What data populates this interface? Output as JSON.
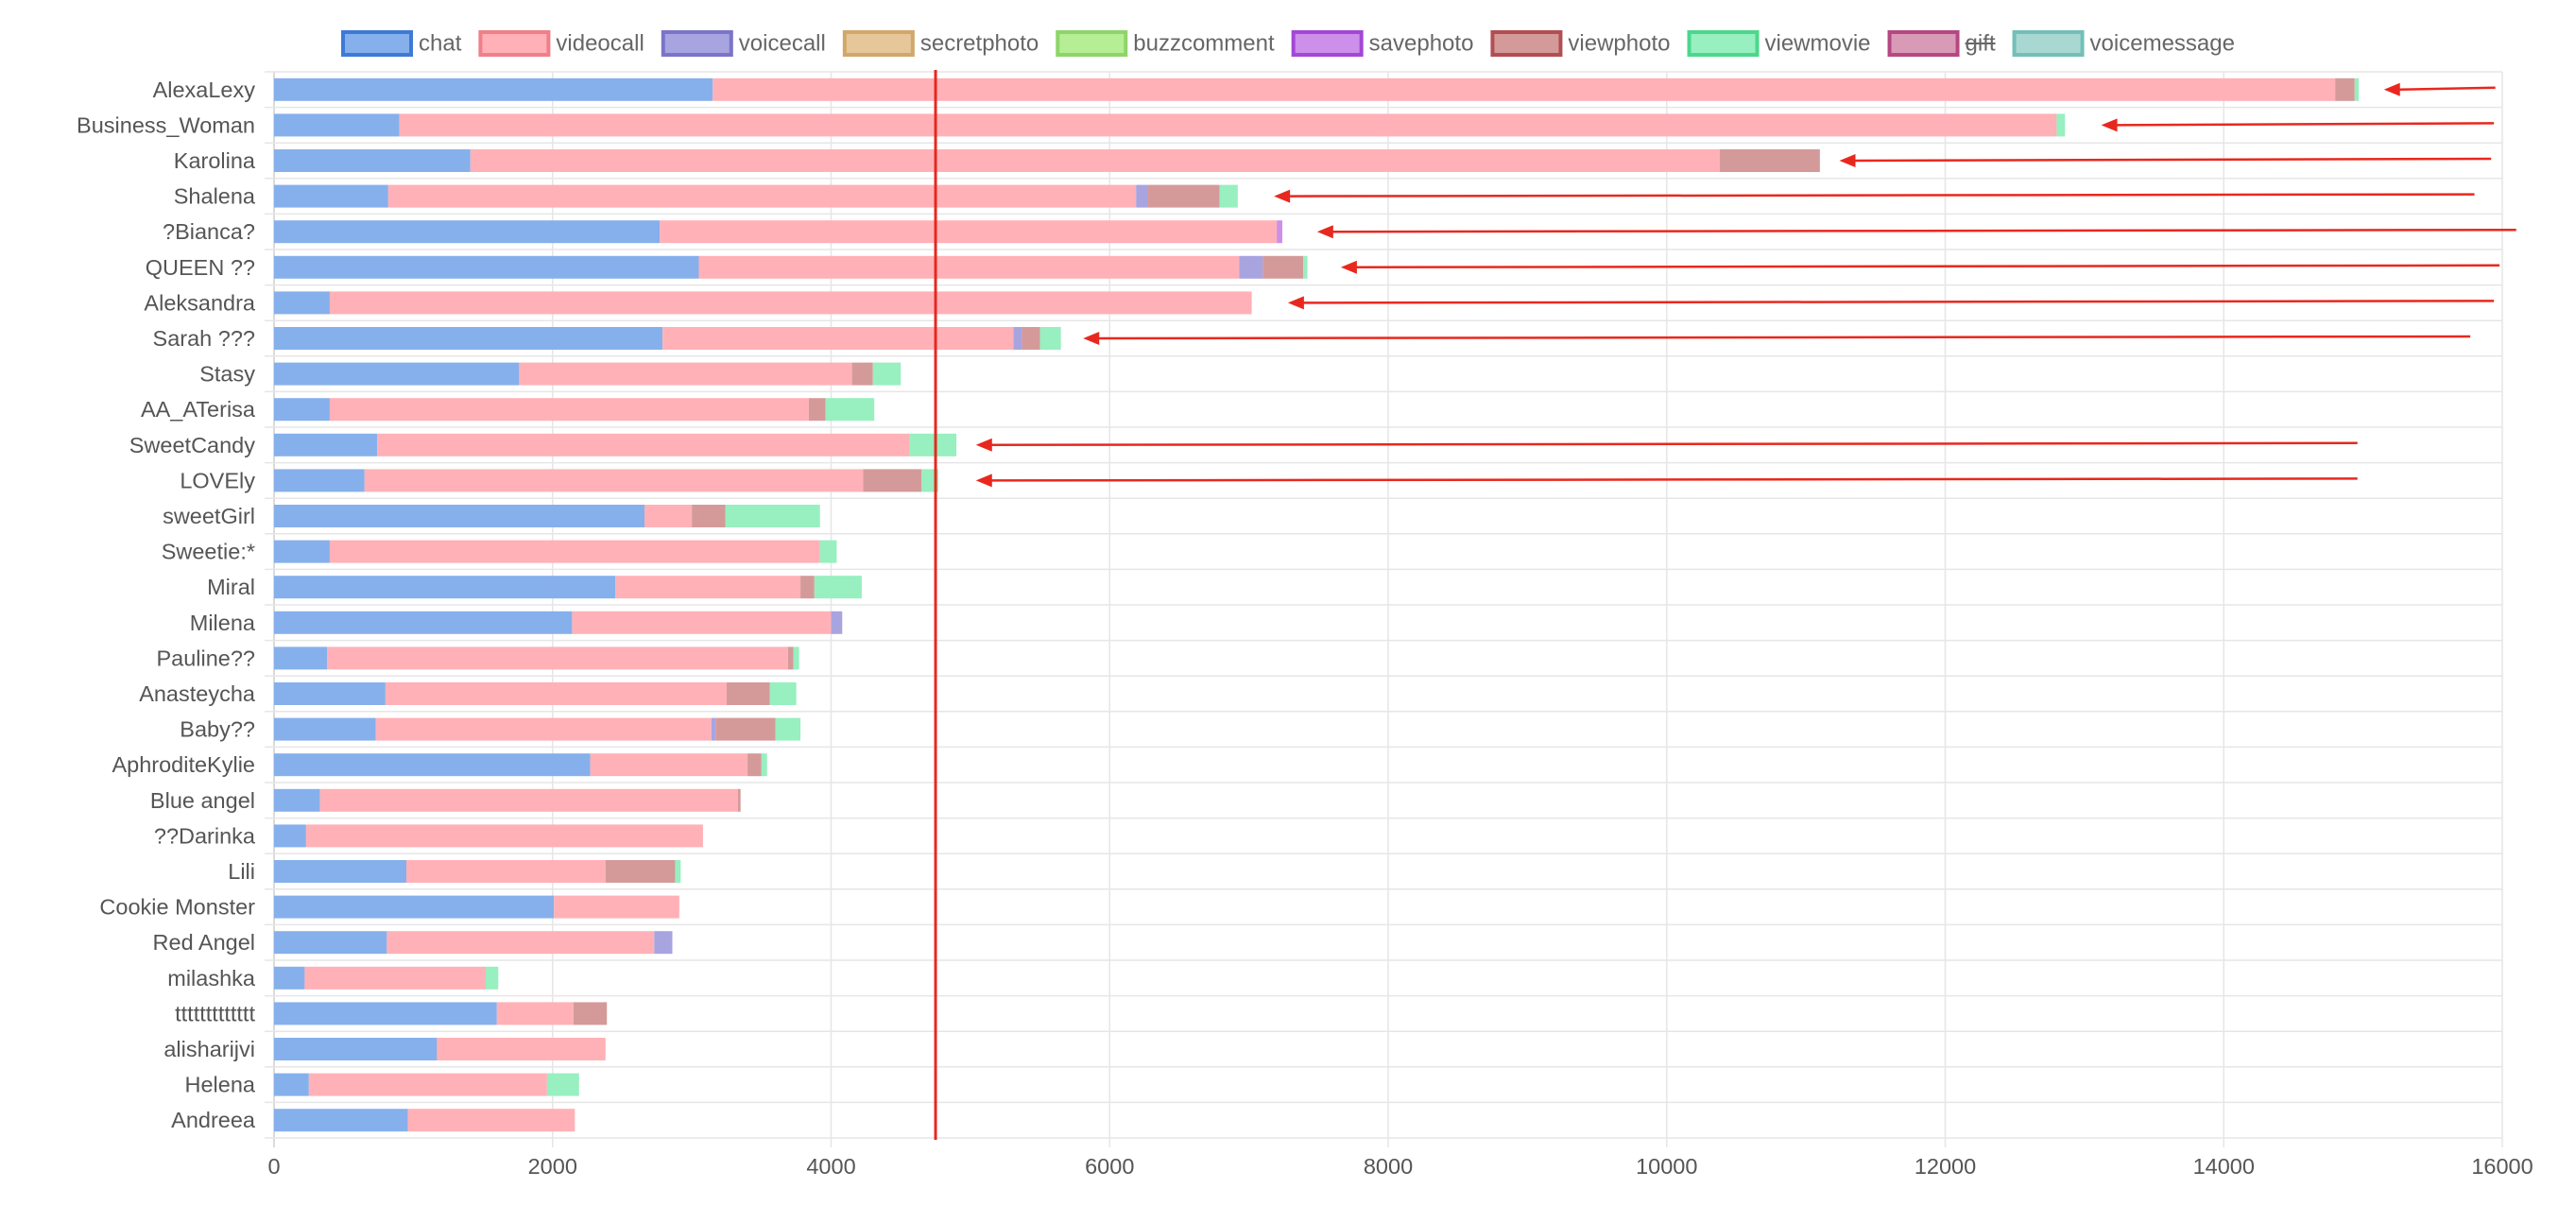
{
  "chart_data": {
    "type": "bar",
    "orientation": "horizontal",
    "stacked": true,
    "grid": true,
    "legend_position": "top",
    "xlim": [
      0,
      16000
    ],
    "x_ticks": [
      "0",
      "2000",
      "4000",
      "6000",
      "8000",
      "10000",
      "12000",
      "14000",
      "16000"
    ],
    "categories": [
      "AlexaLexy",
      "Business_Woman",
      "Karolina",
      "Shalena",
      "?Bianca?",
      "QUEEN ??",
      "Aleksandra",
      "Sarah ???",
      "Stasy",
      "AA_ATerisa",
      "SweetCandy",
      "LOVEly",
      "sweetGirl",
      "Sweetie:*",
      "Miral",
      "Milena",
      "Pauline??",
      "Anasteycha",
      "Baby??",
      "AphroditeKylie",
      "Blue angel",
      "??Darinka",
      "Lili",
      "Cookie Monster",
      "Red Angel",
      "milashka",
      "ttttttttttttt",
      "alisharijvi",
      "Helena",
      "Andreea"
    ],
    "series": [
      {
        "name": "chat",
        "fill": "#86b0ec",
        "border": "#3d7ad6",
        "hidden": false,
        "values": [
          3150,
          900,
          1410,
          820,
          2770,
          3050,
          400,
          2790,
          1760,
          400,
          740,
          650,
          2660,
          400,
          2450,
          2140,
          380,
          800,
          730,
          2270,
          330,
          230,
          950,
          2010,
          810,
          220,
          1600,
          1170,
          250,
          960
        ]
      },
      {
        "name": "videocall",
        "fill": "#ffb1b7",
        "border": "#f07f8a",
        "hidden": false,
        "values": [
          11650,
          11900,
          8970,
          5370,
          4430,
          3880,
          6620,
          2520,
          2390,
          3440,
          3820,
          3580,
          340,
          3520,
          1330,
          1860,
          3310,
          2450,
          2410,
          1130,
          3000,
          2850,
          1430,
          900,
          1920,
          1300,
          550,
          1210,
          1710,
          1200
        ]
      },
      {
        "name": "voicecall",
        "fill": "#a8a4e0",
        "border": "#7b74c8",
        "hidden": false,
        "values": [
          0,
          0,
          0,
          80,
          0,
          170,
          0,
          60,
          0,
          0,
          0,
          0,
          0,
          0,
          0,
          80,
          0,
          0,
          30,
          0,
          0,
          0,
          0,
          0,
          130,
          0,
          0,
          0,
          0,
          0
        ]
      },
      {
        "name": "secretphoto",
        "fill": "#e6c79a",
        "border": "#d2a76a",
        "hidden": false,
        "values": [
          0,
          0,
          0,
          0,
          0,
          0,
          0,
          0,
          0,
          0,
          0,
          0,
          0,
          0,
          0,
          0,
          0,
          0,
          0,
          0,
          0,
          0,
          0,
          0,
          0,
          0,
          0,
          0,
          0,
          0
        ]
      },
      {
        "name": "buzzcomment",
        "fill": "#b5ee94",
        "border": "#8fd46a",
        "hidden": false,
        "values": [
          0,
          0,
          0,
          0,
          0,
          0,
          0,
          0,
          0,
          0,
          0,
          0,
          0,
          0,
          0,
          0,
          0,
          0,
          0,
          0,
          0,
          0,
          0,
          0,
          0,
          0,
          0,
          0,
          0,
          0
        ]
      },
      {
        "name": "savephoto",
        "fill": "#cc8fea",
        "border": "#a347d6",
        "hidden": false,
        "values": [
          0,
          0,
          0,
          0,
          40,
          0,
          0,
          0,
          0,
          0,
          0,
          0,
          0,
          0,
          0,
          0,
          0,
          0,
          0,
          0,
          0,
          0,
          0,
          0,
          0,
          0,
          0,
          0,
          0,
          0
        ]
      },
      {
        "name": "viewphoto",
        "fill": "#d49a9a",
        "border": "#b24e52",
        "hidden": false,
        "values": [
          140,
          0,
          720,
          520,
          0,
          290,
          0,
          130,
          150,
          120,
          0,
          420,
          240,
          0,
          100,
          0,
          40,
          310,
          430,
          100,
          20,
          0,
          500,
          0,
          0,
          0,
          240,
          0,
          0,
          0
        ]
      },
      {
        "name": "viewmovie",
        "fill": "#98efc0",
        "border": "#4cd78b",
        "hidden": false,
        "values": [
          30,
          60,
          0,
          130,
          0,
          30,
          0,
          150,
          200,
          350,
          340,
          120,
          680,
          120,
          340,
          0,
          40,
          190,
          180,
          40,
          0,
          0,
          40,
          0,
          0,
          90,
          0,
          0,
          230,
          0
        ]
      },
      {
        "name": "gift",
        "fill": "#d99ab6",
        "border": "#b54882",
        "hidden": true,
        "values": [
          0,
          0,
          0,
          0,
          0,
          0,
          0,
          0,
          0,
          0,
          0,
          0,
          0,
          0,
          0,
          0,
          0,
          0,
          0,
          0,
          0,
          0,
          0,
          0,
          0,
          0,
          0,
          0,
          0,
          0
        ]
      },
      {
        "name": "voicemessage",
        "fill": "#a9d8d3",
        "border": "#72c0b8",
        "hidden": false,
        "values": [
          0,
          0,
          0,
          0,
          0,
          0,
          0,
          0,
          0,
          0,
          0,
          0,
          0,
          0,
          0,
          0,
          0,
          0,
          0,
          0,
          0,
          0,
          0,
          0,
          0,
          0,
          0,
          0,
          0,
          0
        ]
      }
    ],
    "reference_line": {
      "value": 4750,
      "color": "#e8281e"
    },
    "arrows": {
      "color": "#e8281e",
      "rows": [
        0,
        1,
        2,
        3,
        4,
        5,
        6,
        7,
        10,
        11
      ],
      "tip_values": [
        15150,
        13120,
        11240,
        7180,
        7490,
        7660,
        7280,
        5810,
        5040,
        5040
      ],
      "tail_values": [
        15950,
        15940,
        15920,
        15800,
        16100,
        15980,
        15940,
        15770,
        14960,
        14960
      ]
    }
  }
}
